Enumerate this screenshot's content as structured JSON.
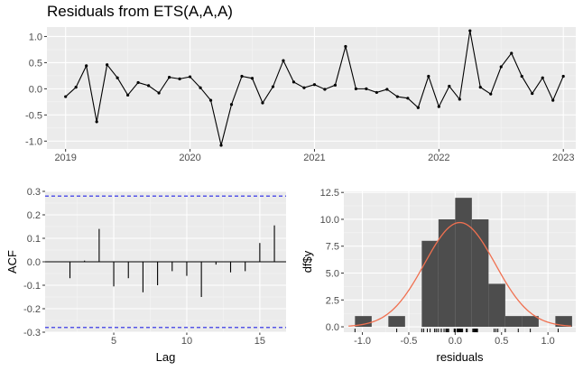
{
  "title": "Residuals from ETS(A,A,A)",
  "chart_data": [
    {
      "type": "line",
      "panel": "residuals-time-series",
      "title": "Residuals from ETS(A,A,A)",
      "xlabel": "",
      "ylabel": "",
      "xlim": [
        2018.85,
        2023.1
      ],
      "ylim": [
        -1.15,
        1.18
      ],
      "x_ticks": [
        2019,
        2020,
        2021,
        2022,
        2023
      ],
      "x_tick_labels": [
        "2019",
        "2020",
        "2021",
        "2022",
        "2023"
      ],
      "y_ticks": [
        -1.0,
        -0.5,
        0.0,
        0.5,
        1.0
      ],
      "y_tick_labels": [
        "-1.0",
        "-0.5",
        "0.0",
        "0.5",
        "1.0"
      ],
      "grid": true,
      "color": "#000000",
      "x_start": 2019.0,
      "x_step": 0.08333,
      "values": [
        -0.15,
        0.03,
        0.44,
        -0.63,
        0.46,
        0.21,
        -0.12,
        0.12,
        0.06,
        -0.08,
        0.22,
        0.19,
        0.23,
        0.02,
        -0.22,
        -1.08,
        -0.3,
        0.24,
        0.2,
        -0.27,
        0.04,
        0.54,
        0.13,
        0.02,
        0.08,
        -0.01,
        0.07,
        0.81,
        0.0,
        0.0,
        -0.07,
        -0.01,
        -0.15,
        -0.18,
        -0.36,
        0.24,
        -0.34,
        0.05,
        -0.2,
        1.11,
        0.03,
        -0.1,
        0.42,
        0.68,
        0.24,
        -0.09,
        0.21,
        -0.22,
        0.24
      ]
    },
    {
      "type": "bar",
      "panel": "acf",
      "xlabel": "Lag",
      "ylabel": "ACF",
      "xlim": [
        0.3,
        16.8
      ],
      "ylim": [
        -0.3,
        0.3
      ],
      "x_ticks": [
        5,
        10,
        15
      ],
      "x_tick_labels": [
        "5",
        "10",
        "15"
      ],
      "y_ticks": [
        -0.3,
        -0.2,
        -0.1,
        0.0,
        0.1,
        0.2,
        0.3
      ],
      "y_tick_labels": [
        "-0.3",
        "-0.2",
        "-0.1",
        "0.0",
        "0.1",
        "0.2",
        "0.3"
      ],
      "grid": true,
      "confidence_bound": 0.28,
      "bound_color": "#2424e6",
      "lags": [
        1,
        2,
        3,
        4,
        5,
        6,
        7,
        8,
        9,
        10,
        11,
        12,
        13,
        14,
        15,
        16
      ],
      "values": [
        0.0,
        -0.07,
        0.005,
        0.14,
        -0.105,
        -0.07,
        -0.13,
        -0.1,
        -0.04,
        -0.06,
        -0.15,
        -0.012,
        -0.045,
        -0.04,
        0.08,
        0.155
      ]
    },
    {
      "type": "histogram",
      "panel": "residual-distribution",
      "xlabel": "residuals",
      "ylabel": "df$y",
      "xlim": [
        -1.2,
        1.3
      ],
      "ylim": [
        -0.5,
        12.6
      ],
      "x_ticks": [
        -1.0,
        -0.5,
        0.0,
        0.5,
        1.0
      ],
      "x_tick_labels": [
        "-1.0",
        "-0.5",
        "0.0",
        "0.5",
        "1.0"
      ],
      "y_ticks": [
        0.0,
        2.5,
        5.0,
        7.5,
        10.0,
        12.5
      ],
      "y_tick_labels": [
        "0.0",
        "2.5",
        "5.0",
        "7.5",
        "10.0",
        "12.5"
      ],
      "grid": true,
      "bar_color": "#4d4d4d",
      "curve_color": "#f07050",
      "bins": [
        {
          "x0": -1.08,
          "x1": -0.9,
          "count": 1
        },
        {
          "x0": -0.72,
          "x1": -0.54,
          "count": 1
        },
        {
          "x0": -0.36,
          "x1": -0.18,
          "count": 8
        },
        {
          "x0": -0.18,
          "x1": 0.0,
          "count": 10
        },
        {
          "x0": 0.0,
          "x1": 0.18,
          "count": 12
        },
        {
          "x0": 0.18,
          "x1": 0.36,
          "count": 10
        },
        {
          "x0": 0.36,
          "x1": 0.54,
          "count": 4
        },
        {
          "x0": 0.54,
          "x1": 0.72,
          "count": 1
        },
        {
          "x0": 0.72,
          "x1": 0.9,
          "count": 1
        },
        {
          "x0": 1.08,
          "x1": 1.26,
          "count": 1
        }
      ],
      "normal_curve": {
        "mean": 0.05,
        "sd": 0.38,
        "scale": 9.7
      }
    }
  ]
}
